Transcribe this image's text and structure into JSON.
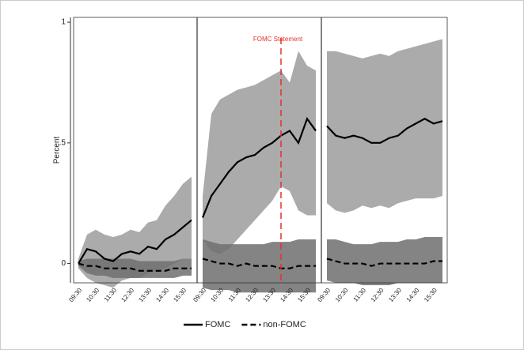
{
  "chart_data": {
    "type": "line",
    "ylabel": "Percent",
    "ylim": [
      -0.08,
      1.02
    ],
    "yticks": [
      0,
      {
        "value": 0.5,
        "label": ".5"
      },
      1
    ],
    "x": [
      "09:30",
      null,
      "10:30",
      null,
      "11:30",
      null,
      "12:30",
      null,
      "13:30",
      null,
      "14:30",
      null,
      "15:30",
      null
    ],
    "series": [
      {
        "name": "FOMC",
        "color": "#000000",
        "style": "solid",
        "band_color": "#ababab",
        "panels": [
          {
            "values": [
              0,
              0.06,
              0.05,
              0.02,
              0.01,
              0.04,
              0.05,
              0.04,
              0.07,
              0.06,
              0.1,
              0.12,
              0.15,
              0.18
            ],
            "upper": [
              0.02,
              0.12,
              0.14,
              0.12,
              0.11,
              0.12,
              0.14,
              0.13,
              0.17,
              0.18,
              0.24,
              0.28,
              0.33,
              0.36
            ],
            "lower": [
              -0.02,
              -0.06,
              -0.08,
              -0.09,
              -0.1,
              -0.07,
              -0.06,
              -0.06,
              -0.04,
              -0.03,
              -0.02,
              0,
              0.02,
              0.02
            ]
          },
          {
            "values": [
              0.19,
              0.28,
              0.33,
              0.38,
              0.42,
              0.44,
              0.45,
              0.48,
              0.5,
              0.53,
              0.55,
              0.5,
              0.6,
              0.55
            ],
            "upper": [
              0.28,
              0.62,
              0.68,
              0.7,
              0.72,
              0.73,
              0.74,
              0.76,
              0.78,
              0.8,
              0.75,
              0.88,
              0.82,
              0.8
            ],
            "lower": [
              0.1,
              0.05,
              0.04,
              0.06,
              0.1,
              0.14,
              0.18,
              0.22,
              0.26,
              0.32,
              0.3,
              0.22,
              0.2,
              0.2
            ]
          },
          {
            "values": [
              0.57,
              0.53,
              0.52,
              0.53,
              0.52,
              0.5,
              0.5,
              0.52,
              0.53,
              0.56,
              0.58,
              0.6,
              0.58,
              0.59
            ],
            "upper": [
              0.88,
              0.88,
              0.87,
              0.86,
              0.85,
              0.86,
              0.87,
              0.86,
              0.88,
              0.89,
              0.9,
              0.91,
              0.92,
              0.93
            ],
            "lower": [
              0.25,
              0.22,
              0.21,
              0.22,
              0.24,
              0.23,
              0.24,
              0.23,
              0.25,
              0.26,
              0.27,
              0.27,
              0.27,
              0.28
            ]
          }
        ]
      },
      {
        "name": "non-FOMC",
        "color": "#000000",
        "style": "dashed",
        "band_color": "#6e6e6e",
        "panels": [
          {
            "values": [
              0,
              -0.01,
              -0.01,
              -0.02,
              -0.02,
              -0.02,
              -0.02,
              -0.03,
              -0.03,
              -0.03,
              -0.03,
              -0.02,
              -0.02,
              -0.02
            ],
            "upper": [
              0.01,
              0.02,
              0.02,
              0.02,
              0.02,
              0.02,
              0.02,
              0.01,
              0.01,
              0.01,
              0.01,
              0.01,
              0.02,
              0.02
            ],
            "lower": [
              -0.01,
              -0.04,
              -0.05,
              -0.05,
              -0.06,
              -0.06,
              -0.06,
              -0.06,
              -0.06,
              -0.06,
              -0.06,
              -0.06,
              -0.05,
              -0.05
            ]
          },
          {
            "values": [
              0.02,
              0.01,
              0,
              0,
              -0.01,
              0,
              -0.01,
              -0.01,
              -0.01,
              -0.02,
              -0.02,
              -0.01,
              -0.01,
              -0.01
            ],
            "upper": [
              0.1,
              0.09,
              0.08,
              0.08,
              0.08,
              0.08,
              0.08,
              0.08,
              0.09,
              0.09,
              0.09,
              0.1,
              0.1,
              0.1
            ],
            "lower": [
              -0.1,
              -0.11,
              -0.11,
              -0.11,
              -0.12,
              -0.12,
              -0.12,
              -0.12,
              -0.12,
              -0.12,
              -0.12,
              -0.12,
              -0.12,
              -0.12
            ]
          },
          {
            "values": [
              0.02,
              0.01,
              0,
              0,
              0,
              -0.01,
              0,
              0,
              0,
              0,
              0,
              0,
              0.01,
              0.01
            ],
            "upper": [
              0.1,
              0.1,
              0.09,
              0.08,
              0.08,
              0.08,
              0.09,
              0.09,
              0.09,
              0.1,
              0.1,
              0.11,
              0.11,
              0.11
            ],
            "lower": [
              -0.07,
              -0.08,
              -0.08,
              -0.08,
              -0.09,
              -0.09,
              -0.09,
              -0.09,
              -0.08,
              -0.08,
              -0.08,
              -0.08,
              -0.08,
              -0.08
            ]
          }
        ]
      }
    ],
    "annotation": {
      "text": "FOMC Statement",
      "panel": 1,
      "x": 9,
      "color": "#e8302a"
    }
  }
}
